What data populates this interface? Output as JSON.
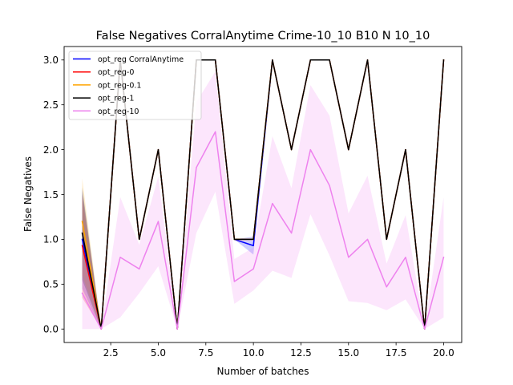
{
  "chart_data": {
    "type": "line",
    "title": "False Negatives CorralAnytime Crime-10_10 B10 N 10_10",
    "xlabel": "Number of batches",
    "ylabel": "False Negatives",
    "xlim": [
      0.05,
      20.95
    ],
    "ylim": [
      -0.15,
      3.15
    ],
    "xticks": [
      2.5,
      5.0,
      7.5,
      10.0,
      12.5,
      15.0,
      17.5,
      20.0
    ],
    "xtick_labels": [
      "2.5",
      "5.0",
      "7.5",
      "10.0",
      "12.5",
      "15.0",
      "17.5",
      "20.0"
    ],
    "yticks": [
      0.0,
      0.5,
      1.0,
      1.5,
      2.0,
      2.5,
      3.0
    ],
    "ytick_labels": [
      "0.0",
      "0.5",
      "1.0",
      "1.5",
      "2.0",
      "2.5",
      "3.0"
    ],
    "grid": false,
    "legend_position": "upper-left",
    "series": [
      {
        "name": "opt_reg CorralAnytime",
        "color": "#0000ff",
        "x": [
          1,
          2,
          3,
          4,
          5,
          6,
          7,
          8,
          9,
          10,
          11,
          12,
          13,
          14,
          15,
          16,
          17,
          18,
          19,
          20
        ],
        "y": [
          1.0,
          0.0,
          3.0,
          1.0,
          2.0,
          0.0,
          3.0,
          3.0,
          1.0,
          0.93,
          3.0,
          2.0,
          3.0,
          3.0,
          2.0,
          3.0,
          1.0,
          2.0,
          0.0,
          3.0
        ],
        "band_low": [
          0.45,
          0.0,
          3.0,
          1.0,
          2.0,
          0.0,
          3.0,
          3.0,
          1.0,
          0.83,
          3.0,
          2.0,
          3.0,
          3.0,
          2.0,
          3.0,
          1.0,
          2.0,
          0.0,
          3.0
        ],
        "band_high": [
          1.55,
          0.0,
          3.0,
          1.0,
          2.0,
          0.0,
          3.0,
          3.0,
          1.0,
          1.03,
          3.0,
          2.0,
          3.0,
          3.0,
          2.0,
          3.0,
          1.0,
          2.0,
          0.0,
          3.0
        ]
      },
      {
        "name": "opt_reg-0",
        "color": "#ff0000",
        "x": [
          1,
          2,
          3,
          4,
          5,
          6,
          7,
          8,
          9,
          10,
          11,
          12,
          13,
          14,
          15,
          16,
          17,
          18,
          19,
          20
        ],
        "y": [
          0.93,
          0.0,
          3.0,
          1.0,
          2.0,
          0.0,
          3.0,
          3.0,
          1.0,
          1.0,
          3.0,
          2.0,
          3.0,
          3.0,
          2.0,
          3.0,
          1.0,
          2.0,
          0.0,
          3.0
        ],
        "band_low": [
          0.35,
          0.0,
          3.0,
          1.0,
          2.0,
          0.0,
          3.0,
          3.0,
          1.0,
          1.0,
          3.0,
          2.0,
          3.0,
          3.0,
          2.0,
          3.0,
          1.0,
          2.0,
          0.0,
          3.0
        ],
        "band_high": [
          1.5,
          0.0,
          3.0,
          1.0,
          2.0,
          0.0,
          3.0,
          3.0,
          1.0,
          1.0,
          3.0,
          2.0,
          3.0,
          3.0,
          2.0,
          3.0,
          1.0,
          2.0,
          0.0,
          3.0
        ]
      },
      {
        "name": "opt_reg-0.1",
        "color": "#ffa500",
        "x": [
          1,
          2,
          3,
          4,
          5,
          6,
          7,
          8,
          9,
          10,
          11,
          12,
          13,
          14,
          15,
          16,
          17,
          18,
          19,
          20
        ],
        "y": [
          1.2,
          0.0,
          3.0,
          1.0,
          2.0,
          0.0,
          3.0,
          3.0,
          1.0,
          1.0,
          3.0,
          2.0,
          3.0,
          3.0,
          2.0,
          3.0,
          1.0,
          2.0,
          0.0,
          3.0
        ],
        "band_low": [
          0.6,
          0.0,
          3.0,
          1.0,
          2.0,
          0.0,
          3.0,
          3.0,
          1.0,
          1.0,
          3.0,
          2.0,
          3.0,
          3.0,
          2.0,
          3.0,
          1.0,
          2.0,
          0.0,
          3.0
        ],
        "band_high": [
          1.68,
          0.0,
          3.0,
          1.0,
          2.0,
          0.0,
          3.0,
          3.0,
          1.0,
          1.0,
          3.0,
          2.0,
          3.0,
          3.0,
          2.0,
          3.0,
          1.0,
          2.0,
          0.0,
          3.0
        ]
      },
      {
        "name": "opt_reg-1",
        "color": "#000000",
        "x": [
          1,
          2,
          3,
          4,
          5,
          6,
          7,
          8,
          9,
          10,
          11,
          12,
          13,
          14,
          15,
          16,
          17,
          18,
          19,
          20
        ],
        "y": [
          1.07,
          0.0,
          3.0,
          1.0,
          2.0,
          0.0,
          3.0,
          3.0,
          1.0,
          1.0,
          3.0,
          2.0,
          3.0,
          3.0,
          2.0,
          3.0,
          1.0,
          2.0,
          0.0,
          3.0
        ],
        "band_low": [
          0.55,
          0.0,
          3.0,
          1.0,
          2.0,
          0.0,
          3.0,
          3.0,
          1.0,
          1.0,
          3.0,
          2.0,
          3.0,
          3.0,
          2.0,
          3.0,
          1.0,
          2.0,
          0.0,
          3.0
        ],
        "band_high": [
          1.58,
          0.0,
          3.0,
          1.0,
          2.0,
          0.0,
          3.0,
          3.0,
          1.0,
          1.0,
          3.0,
          2.0,
          3.0,
          3.0,
          2.0,
          3.0,
          1.0,
          2.0,
          0.0,
          3.0
        ]
      },
      {
        "name": "opt_reg-10",
        "color": "#ee82ee",
        "x": [
          1,
          2,
          3,
          4,
          5,
          6,
          7,
          8,
          9,
          10,
          11,
          12,
          13,
          14,
          15,
          16,
          17,
          18,
          19,
          20
        ],
        "y": [
          0.4,
          0.0,
          0.8,
          0.67,
          1.2,
          0.0,
          1.8,
          2.2,
          0.53,
          0.67,
          1.4,
          1.07,
          2.0,
          1.6,
          0.8,
          1.0,
          0.47,
          0.8,
          0.0,
          0.8
        ],
        "band_low": [
          0.0,
          0.0,
          0.13,
          0.4,
          0.7,
          0.0,
          1.07,
          1.53,
          0.28,
          0.43,
          0.65,
          0.57,
          1.28,
          0.82,
          0.31,
          0.29,
          0.21,
          0.33,
          0.0,
          0.13
        ],
        "band_high": [
          0.92,
          0.0,
          1.47,
          0.94,
          1.7,
          0.0,
          2.53,
          2.87,
          0.78,
          0.91,
          2.15,
          1.57,
          2.72,
          2.38,
          1.29,
          1.71,
          0.73,
          1.27,
          0.0,
          1.47
        ]
      }
    ]
  }
}
